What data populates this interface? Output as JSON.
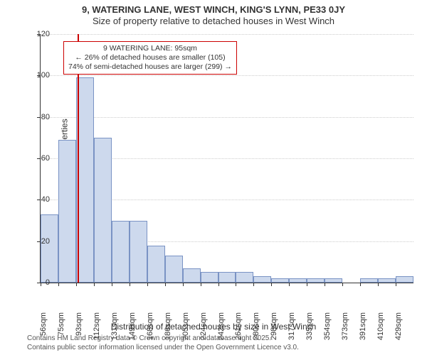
{
  "title_line1": "9, WATERING LANE, WEST WINCH, KING'S LYNN, PE33 0JY",
  "title_line2": "Size of property relative to detached houses in West Winch",
  "ylabel": "Number of detached properties",
  "xlabel": "Distribution of detached houses by size in West Winch",
  "footer_line1": "Contains HM Land Registry data © Crown copyright and database right 2025.",
  "footer_line2": "Contains public sector information licensed under the Open Government Licence v3.0.",
  "chart": {
    "type": "histogram",
    "background_color": "#ffffff",
    "grid_color": "#cccccc",
    "axis_color": "#333333",
    "bar_fill": "#cdd9ed",
    "bar_stroke": "#7a93c4",
    "bar_stroke_width": 1,
    "marker_color": "#cc0000",
    "marker_x": 95,
    "anno_border_color": "#cc0000",
    "anno_line1": "9 WATERING LANE: 95sqm",
    "anno_line2": "← 26% of detached houses are smaller (105)",
    "anno_line3": "74% of semi-detached houses are larger (299) →",
    "ylim": [
      0,
      120
    ],
    "ytick_step": 20,
    "x_start": 56,
    "x_step": 18.625,
    "x_count": 21,
    "xtick_suffix": "sqm",
    "values": [
      33,
      69,
      99,
      70,
      30,
      30,
      18,
      13,
      7,
      5,
      5,
      5,
      3,
      2,
      2,
      2,
      2,
      0,
      2,
      2,
      3
    ],
    "label_fontsize": 11,
    "title_fontsize": 13
  }
}
